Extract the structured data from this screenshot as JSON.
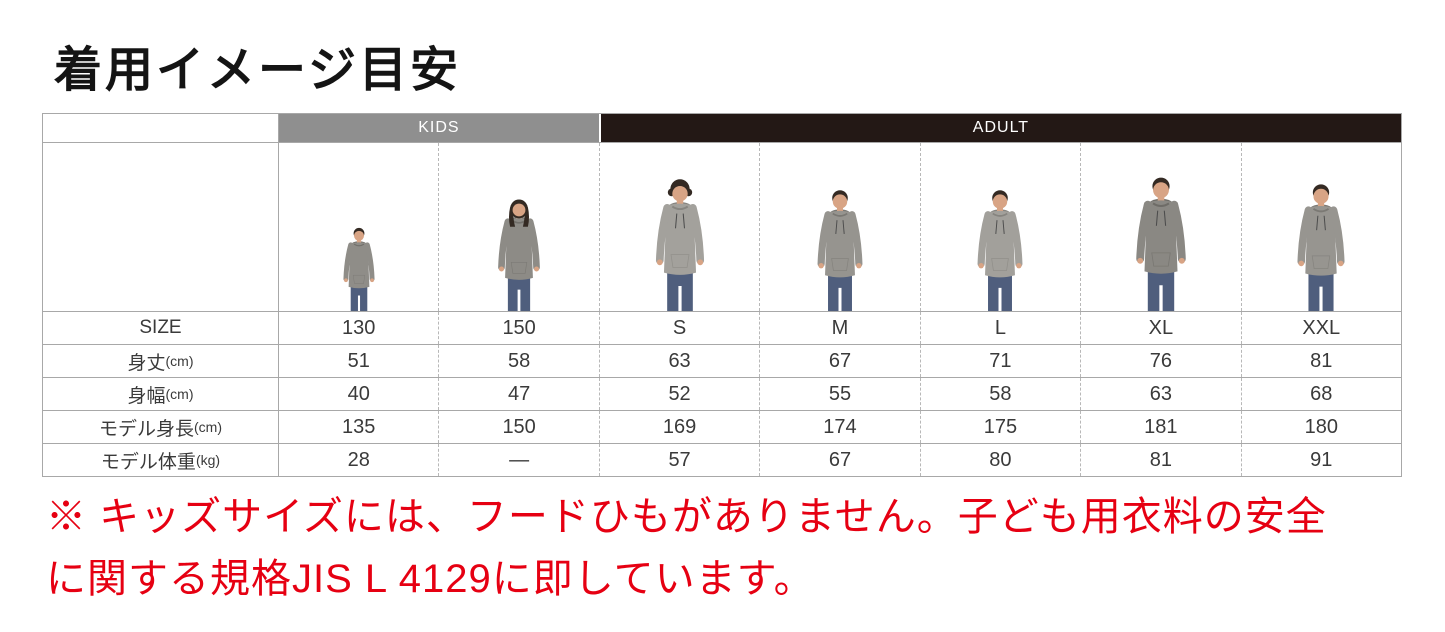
{
  "page": {
    "title": "着用イメージ目安"
  },
  "table": {
    "group_headers": [
      {
        "label": "",
        "span": 1
      },
      {
        "label": "KIDS",
        "span": 2
      },
      {
        "label": "ADULT",
        "span": 5
      }
    ],
    "sizes": [
      "130",
      "150",
      "S",
      "M",
      "L",
      "XL",
      "XXL"
    ],
    "rows": [
      {
        "label": "SIZE",
        "unit": "",
        "values": [
          "130",
          "150",
          "S",
          "M",
          "L",
          "XL",
          "XXL"
        ]
      },
      {
        "label": "身丈",
        "unit": "(cm)",
        "values": [
          "51",
          "58",
          "63",
          "67",
          "71",
          "76",
          "81"
        ]
      },
      {
        "label": "身幅",
        "unit": "(cm)",
        "values": [
          "40",
          "47",
          "52",
          "55",
          "58",
          "63",
          "68"
        ]
      },
      {
        "label": "モデル身長",
        "unit": "(cm)",
        "values": [
          "135",
          "150",
          "169",
          "174",
          "175",
          "181",
          "180"
        ]
      },
      {
        "label": "モデル体重",
        "unit": "(kg)",
        "values": [
          "28",
          "—",
          "57",
          "67",
          "80",
          "81",
          "91"
        ]
      }
    ]
  },
  "note": {
    "lines": [
      "※ キッズサイズには、フードひもがありません。子ども用衣料の安全",
      "に関する規格JIS L 4129に即しています。"
    ]
  },
  "colors": {
    "kids_header_bg": "#8f8f8f",
    "adult_header_bg": "#231815",
    "header_text": "#ffffff",
    "note_red": "#e60012",
    "border": "#a8a8a8",
    "text": "#3a3a3a"
  }
}
